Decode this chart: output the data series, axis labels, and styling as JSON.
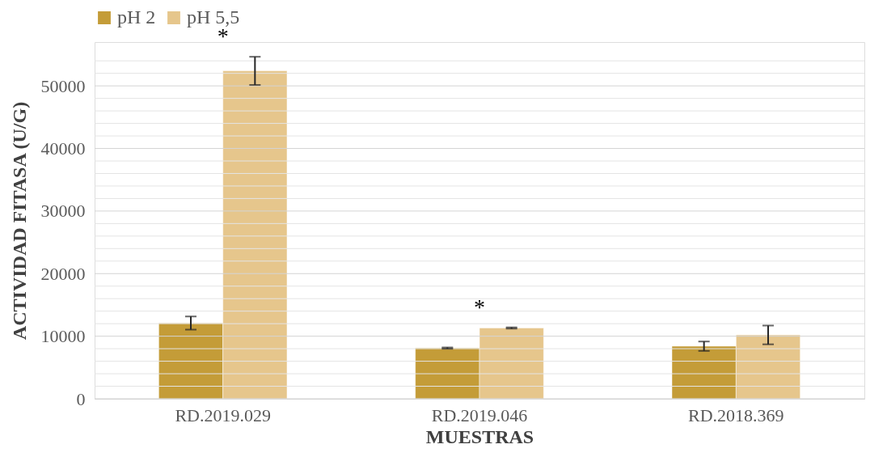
{
  "chart_data": {
    "type": "bar",
    "xlabel": "MUESTRAS",
    "ylabel": "ACTIVIDAD FITASA (U/G)",
    "categories": [
      "RD.2019.029",
      "RD.2019.046",
      "RD.2018.369"
    ],
    "series": [
      {
        "name": "pH 2",
        "color": "#c49c38",
        "values": [
          12100,
          8100,
          8400
        ],
        "errors": [
          1050,
          100,
          750
        ]
      },
      {
        "name": "pH 5,5",
        "color": "#e6c68c",
        "values": [
          52400,
          11300,
          10200
        ],
        "errors": [
          2250,
          100,
          1500
        ]
      }
    ],
    "ylim": [
      0,
      57000
    ],
    "yticks": [
      0,
      {
        "value": 2000,
        "label": null
      },
      {
        "value": 4000,
        "label": null
      },
      {
        "value": 6000,
        "label": null
      },
      {
        "value": 8000,
        "label": null
      },
      10000,
      {
        "value": 12000,
        "label": null
      },
      {
        "value": 14000,
        "label": null
      },
      {
        "value": 16000,
        "label": null
      },
      {
        "value": 18000,
        "label": null
      },
      20000,
      {
        "value": 22000,
        "label": null
      },
      {
        "value": 24000,
        "label": null
      },
      {
        "value": 26000,
        "label": null
      },
      {
        "value": 28000,
        "label": null
      },
      30000,
      {
        "value": 32000,
        "label": null
      },
      {
        "value": 34000,
        "label": null
      },
      {
        "value": 36000,
        "label": null
      },
      {
        "value": 38000,
        "label": null
      },
      40000,
      {
        "value": 42000,
        "label": null
      },
      {
        "value": 44000,
        "label": null
      },
      {
        "value": 46000,
        "label": null
      },
      {
        "value": 48000,
        "label": null
      },
      50000,
      {
        "value": 52000,
        "label": null
      },
      {
        "value": 54000,
        "label": null
      }
    ],
    "annotations": [
      "*",
      "*"
    ],
    "grid": true,
    "legend": "top"
  }
}
